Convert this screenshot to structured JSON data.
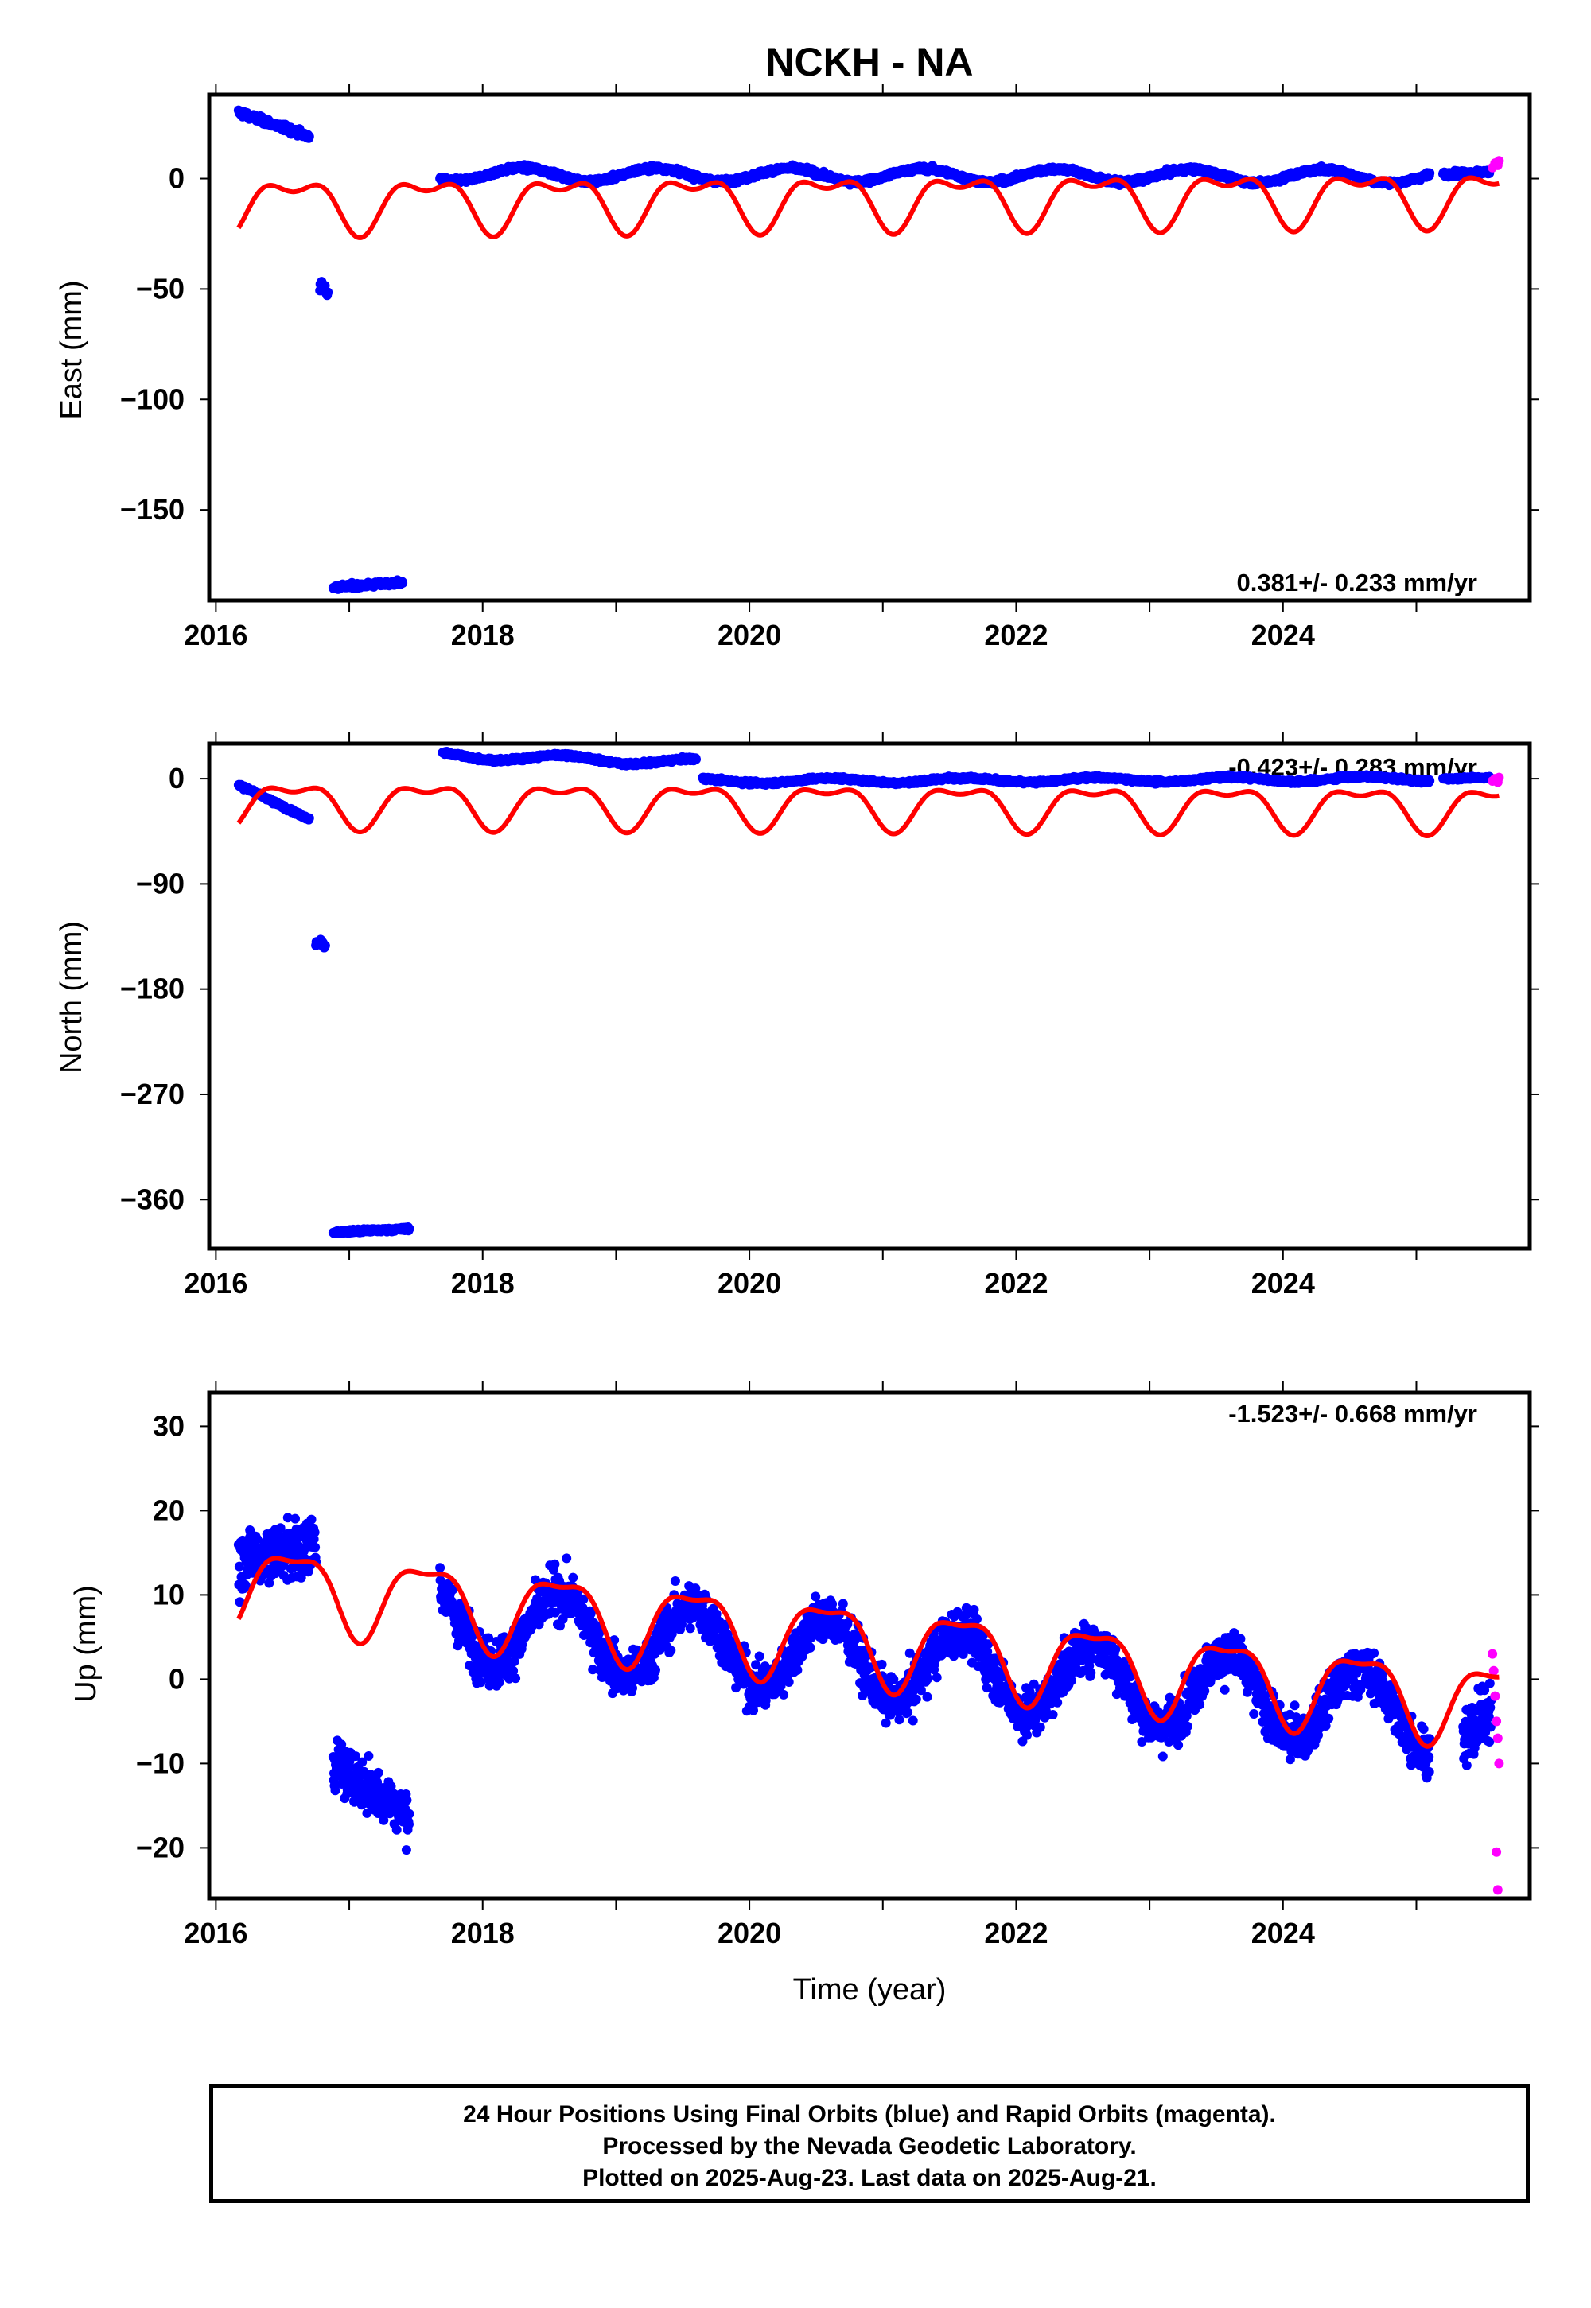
{
  "title": "NCKH - NA",
  "xlabel": "Time (year)",
  "xticks": [
    "2016",
    "2018",
    "2020",
    "2022",
    "2024"
  ],
  "colors": {
    "final": "#0000ff",
    "rapid": "#ff00ff",
    "model": "#ff0000"
  },
  "caption": {
    "line1": "24 Hour Positions Using Final Orbits (blue) and Rapid Orbits (magenta).",
    "line2": "Processed by the Nevada Geodetic Laboratory.",
    "line3": "Plotted on 2025-Aug-23. Last data on 2025-Aug-21."
  },
  "chart_data": [
    {
      "type": "scatter",
      "panel": "east",
      "ylabel": "East (mm)",
      "rate": "0.381+/- 0.233 mm/yr",
      "xlim": [
        2015.95,
        2025.85
      ],
      "ylim": [
        -191,
        38
      ],
      "yticks": [
        "0",
        "−50",
        "−100",
        "−150"
      ],
      "ytick_values": [
        0,
        -50,
        -100,
        -150
      ],
      "segments": [
        {
          "x0": 2016.17,
          "x1": 2016.7,
          "y0": 30,
          "y1": 19,
          "noise": 2
        },
        {
          "x0": 2016.78,
          "x1": 2016.84,
          "y0": -48,
          "y1": -52,
          "noise": 3
        },
        {
          "x0": 2016.88,
          "x1": 2017.4,
          "y0": -185,
          "y1": -183,
          "noise": 1.5
        },
        {
          "x0": 2017.68,
          "x1": 2025.1,
          "y0": 2,
          "y1": 1,
          "noise": 1.5,
          "wave": 3,
          "phase": 0.3
        },
        {
          "x0": 2025.2,
          "x1": 2025.55,
          "y0": 2,
          "y1": 3,
          "noise": 1.5
        }
      ],
      "rapid": [
        [
          2025.57,
          5
        ],
        [
          2025.59,
          7
        ],
        [
          2025.61,
          6
        ],
        [
          2025.62,
          8
        ]
      ],
      "model": {
        "base": -9.5,
        "amp1": 10.5,
        "ph1": 0.58,
        "amp2": 5.5,
        "ph2": 0.83,
        "trend": 0.38,
        "offset_after_2017_7": 0,
        "start": 2016.17,
        "end": 2025.62
      }
    },
    {
      "type": "scatter",
      "panel": "north",
      "ylabel": "North (mm)",
      "rate": "-0.423+/- 0.283 mm/yr",
      "xlim": [
        2015.95,
        2025.85
      ],
      "ylim": [
        -402,
        30
      ],
      "yticks": [
        "0",
        "−90",
        "−180",
        "−270",
        "−360"
      ],
      "ytick_values": [
        0,
        -90,
        -180,
        -270,
        -360
      ],
      "segments": [
        {
          "x0": 2016.17,
          "x1": 2016.7,
          "y0": -5,
          "y1": -35,
          "noise": 2
        },
        {
          "x0": 2016.75,
          "x1": 2016.82,
          "y0": -140,
          "y1": -143,
          "noise": 4
        },
        {
          "x0": 2016.88,
          "x1": 2017.45,
          "y0": -388,
          "y1": -385,
          "noise": 2
        },
        {
          "x0": 2017.7,
          "x1": 2019.6,
          "y0": 20,
          "y1": 14,
          "noise": 2,
          "wave": 3,
          "phase": 0.6
        },
        {
          "x0": 2019.65,
          "x1": 2025.1,
          "y0": -2,
          "y1": 0,
          "noise": 2,
          "wave": 2,
          "phase": 0.6
        },
        {
          "x0": 2025.2,
          "x1": 2025.55,
          "y0": 0,
          "y1": 1,
          "noise": 1.5
        }
      ],
      "rapid": [
        [
          2025.57,
          -2
        ],
        [
          2025.59,
          0
        ],
        [
          2025.61,
          -3
        ],
        [
          2025.62,
          1
        ]
      ],
      "model": {
        "base": -22,
        "amp1": 17,
        "ph1": 0.58,
        "amp2": 8,
        "ph2": 0.83,
        "trend": -0.42,
        "start": 2016.17,
        "end": 2025.62
      }
    },
    {
      "type": "scatter",
      "panel": "up",
      "ylabel": "Up (mm)",
      "rate": "-1.523+/- 0.668 mm/yr",
      "xlim": [
        2015.95,
        2025.85
      ],
      "ylim": [
        -26,
        34
      ],
      "yticks": [
        "30",
        "20",
        "10",
        "0",
        "−10",
        "−20"
      ],
      "ytick_values": [
        30,
        20,
        10,
        0,
        -10,
        -20
      ],
      "segments": [
        {
          "x0": 2016.17,
          "x1": 2016.75,
          "y0": 14,
          "y1": 16,
          "noise": 5
        },
        {
          "x0": 2016.88,
          "x1": 2017.45,
          "y0": -10,
          "y1": -16,
          "noise": 4
        },
        {
          "x0": 2017.68,
          "x1": 2025.1,
          "y0": 7,
          "y1": -4,
          "noise": 4,
          "wave": 4.5,
          "phase": 0.58
        },
        {
          "x0": 2025.35,
          "x1": 2025.56,
          "y0": -8,
          "y1": -3,
          "noise": 5
        }
      ],
      "rapid": [
        [
          2025.57,
          3
        ],
        [
          2025.58,
          1
        ],
        [
          2025.59,
          -2
        ],
        [
          2025.6,
          -5
        ],
        [
          2025.61,
          -7
        ],
        [
          2025.62,
          -10
        ],
        [
          2025.6,
          -20.5
        ],
        [
          2025.61,
          -25
        ]
      ],
      "model": {
        "base": 5,
        "amp1": 4.5,
        "ph1": 0.58,
        "amp2": 1.5,
        "ph2": 0.83,
        "trend": -1.52,
        "start": 2016.17,
        "end": 2025.62
      }
    }
  ]
}
